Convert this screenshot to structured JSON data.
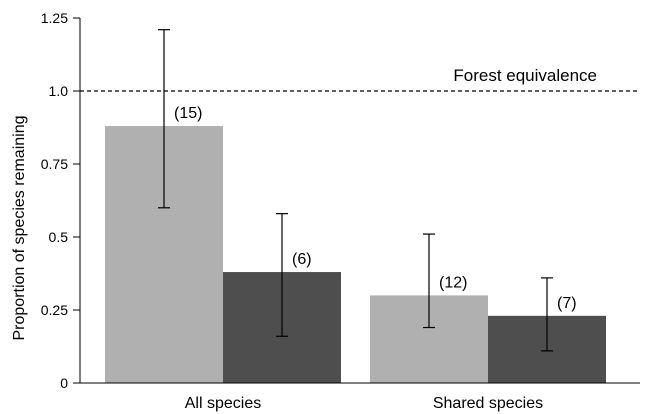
{
  "chart_data": {
    "type": "bar",
    "ylabel": "Proportion of species remaining",
    "xlabel": "",
    "ylim": [
      0,
      1.25
    ],
    "yticks": [
      {
        "value": 0,
        "label": "0"
      },
      {
        "value": 0.25,
        "label": "0.25"
      },
      {
        "value": 0.5,
        "label": "0.5"
      },
      {
        "value": 0.75,
        "label": "0.75"
      },
      {
        "value": 1.0,
        "label": "1.0"
      },
      {
        "value": 1.25,
        "label": "1.25"
      }
    ],
    "categories": [
      "All species",
      "Shared species"
    ],
    "series": [
      {
        "color": "#b0b0b0",
        "values": [
          0.88,
          0.3
        ],
        "err_low": [
          0.6,
          0.19
        ],
        "err_high": [
          1.21,
          0.51
        ],
        "n_labels": [
          "(15)",
          "(12)"
        ]
      },
      {
        "color": "#4e4e4e",
        "values": [
          0.38,
          0.23
        ],
        "err_low": [
          0.16,
          0.11
        ],
        "err_high": [
          0.58,
          0.36
        ],
        "n_labels": [
          "(6)",
          "(7)"
        ]
      }
    ],
    "reference_line": {
      "value": 1.0,
      "label": "Forest equivalence",
      "style": "dashed"
    },
    "grid": false,
    "legend": "none"
  }
}
